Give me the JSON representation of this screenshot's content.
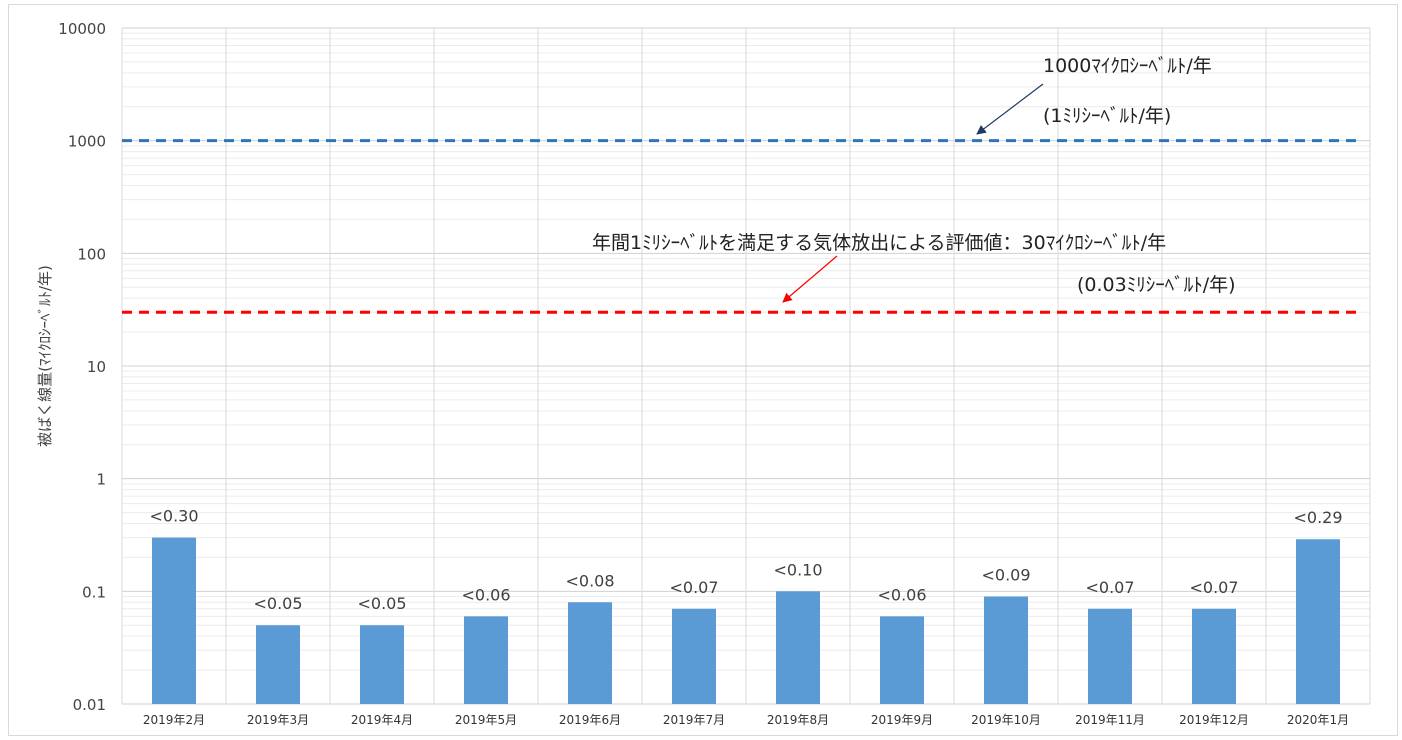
{
  "chart_data": {
    "type": "bar",
    "scale": "log",
    "ylim": [
      0.01,
      10000
    ],
    "ylabel": "被ばく線量(ﾏｲｸﾛｼｰﾍﾞﾙﾄ/年)",
    "xlabel": "",
    "title": "",
    "grid": true,
    "y_tick_labels": [
      "0.01",
      "0.1",
      "1",
      "10",
      "100",
      "1000",
      "10000"
    ],
    "categories": [
      "2019年2月",
      "2019年3月",
      "2019年4月",
      "2019年5月",
      "2019年6月",
      "2019年7月",
      "2019年8月",
      "2019年9月",
      "2019年10月",
      "2019年11月",
      "2019年12月",
      "2020年1月"
    ],
    "values": [
      0.3,
      0.05,
      0.05,
      0.06,
      0.08,
      0.07,
      0.1,
      0.06,
      0.09,
      0.07,
      0.07,
      0.29
    ],
    "data_labels": [
      "<0.30",
      "<0.05",
      "<0.05",
      "<0.06",
      "<0.08",
      "<0.07",
      "<0.10",
      "<0.06",
      "<0.09",
      "<0.07",
      "<0.07",
      "<0.29"
    ],
    "bar_color": "#5b9bd5",
    "reference_lines": [
      {
        "value": 1000,
        "color": "#2e75b6",
        "style": "dashed",
        "label_lines": [
          "1000ﾏｲｸﾛｼｰﾍﾞﾙﾄ/年",
          "(1ﾐﾘｼｰﾍﾞﾙﾄ/年)"
        ],
        "arrow_color": "#1f3864"
      },
      {
        "value": 30,
        "color": "#ff0000",
        "style": "dashed",
        "label_lines": [
          "年間1ﾐﾘｼｰﾍﾞﾙﾄを満足する気体放出による評価値：30ﾏｲｸﾛｼｰﾍﾞﾙﾄ/年",
          "(0.03ﾐﾘｼｰﾍﾞﾙﾄ/年)"
        ],
        "arrow_color": "#ff0000"
      }
    ]
  }
}
